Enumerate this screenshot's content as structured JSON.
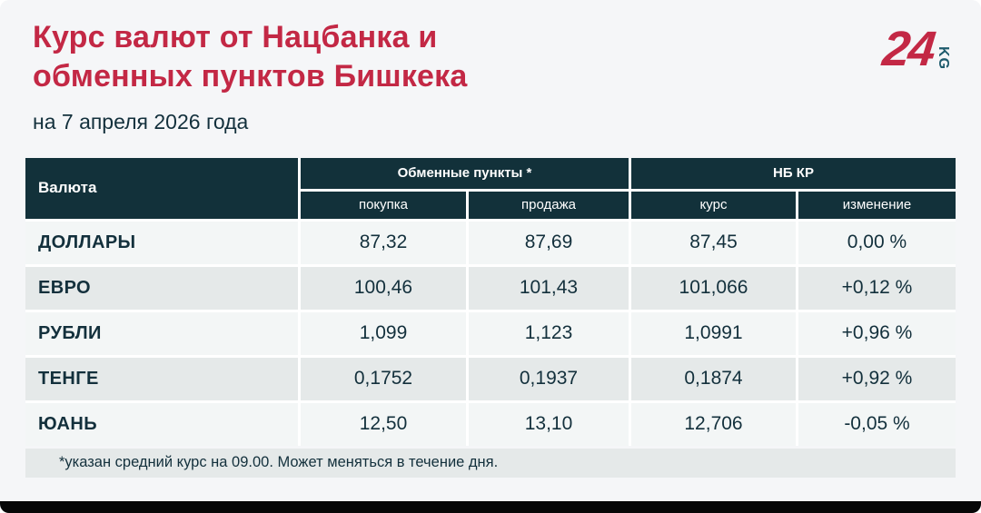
{
  "page": {
    "title_line1": "Курс валют от Нацбанка и",
    "title_line2": "обменных пунктов Бишкека",
    "subtitle": "на 7 апреля 2026 года",
    "footnote": "*указан средний курс на 09.00. Может меняться в течение дня."
  },
  "logo": {
    "number": "24",
    "suffix": "KG"
  },
  "colors": {
    "accent_red": "#c32845",
    "header_dark": "#12313a",
    "text_dark": "#13303c",
    "row_light": "#f3f6f6",
    "row_gray": "#e5e9e9",
    "logo_teal": "#1e5b6d",
    "bottom_bar": "#070707"
  },
  "table": {
    "col_currency": "Валюта",
    "group_exchange": "Обменные пункты *",
    "group_nbkr": "НБ КР",
    "sub_buy": "покупка",
    "sub_sell": "продажа",
    "sub_rate": "курс",
    "sub_change": "изменение",
    "rows": [
      {
        "name": "ДОЛЛАРЫ",
        "buy": "87,32",
        "sell": "87,69",
        "rate": "87,45",
        "change": "0,00 %"
      },
      {
        "name": "ЕВРО",
        "buy": "100,46",
        "sell": "101,43",
        "rate": "101,066",
        "change": "+0,12 %"
      },
      {
        "name": "РУБЛИ",
        "buy": "1,099",
        "sell": "1,123",
        "rate": "1,0991",
        "change": "+0,96 %"
      },
      {
        "name": "ТЕНГЕ",
        "buy": "0,1752",
        "sell": "0,1937",
        "rate": "0,1874",
        "change": "+0,92 %"
      },
      {
        "name": "ЮАНЬ",
        "buy": "12,50",
        "sell": "13,10",
        "rate": "12,706",
        "change": "-0,05 %"
      }
    ]
  },
  "chart_data": {
    "type": "table",
    "title": "Курс валют от Нацбанка и обменных пунктов Бишкека",
    "subtitle": "на 7 апреля 2026 года",
    "columns": [
      "Валюта",
      "Обменные пункты — покупка",
      "Обменные пункты — продажа",
      "НБ КР — курс",
      "НБ КР — изменение"
    ],
    "rows": [
      {
        "currency": "ДОЛЛАРЫ",
        "buy": 87.32,
        "sell": 87.69,
        "nbkr_rate": 87.45,
        "nbkr_change_pct": 0.0
      },
      {
        "currency": "ЕВРО",
        "buy": 100.46,
        "sell": 101.43,
        "nbkr_rate": 101.066,
        "nbkr_change_pct": 0.12
      },
      {
        "currency": "РУБЛИ",
        "buy": 1.099,
        "sell": 1.123,
        "nbkr_rate": 1.0991,
        "nbkr_change_pct": 0.96
      },
      {
        "currency": "ТЕНГЕ",
        "buy": 0.1752,
        "sell": 0.1937,
        "nbkr_rate": 0.1874,
        "nbkr_change_pct": 0.92
      },
      {
        "currency": "ЮАНЬ",
        "buy": 12.5,
        "sell": 13.1,
        "nbkr_rate": 12.706,
        "nbkr_change_pct": -0.05
      }
    ],
    "footnote": "*указан средний курс на 09.00. Может меняться в течение дня."
  }
}
